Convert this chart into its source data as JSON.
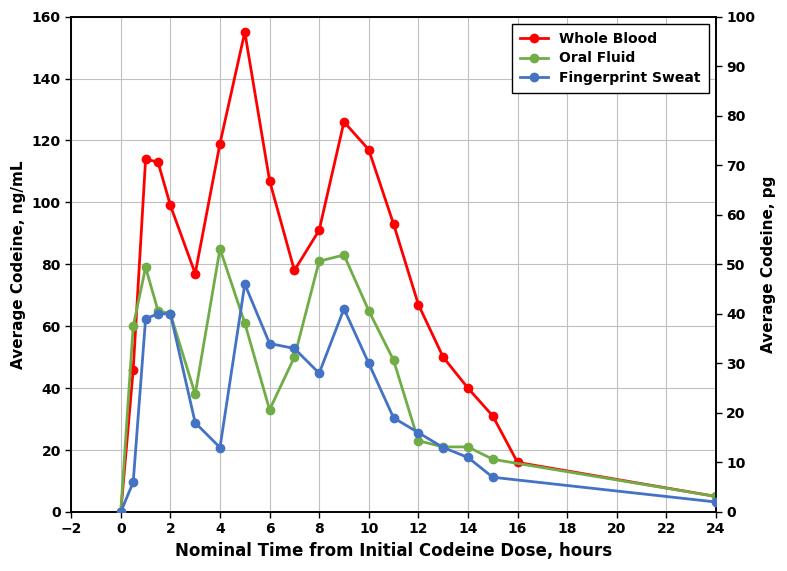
{
  "whole_blood_x": [
    0,
    0.5,
    1,
    1.5,
    2,
    3,
    4,
    5,
    6,
    7,
    8,
    9,
    10,
    11,
    12,
    13,
    14,
    15,
    16,
    24
  ],
  "whole_blood_y": [
    0,
    46,
    114,
    113,
    99,
    77,
    119,
    155,
    107,
    78,
    91,
    126,
    117,
    93,
    67,
    50,
    40,
    31,
    16,
    5
  ],
  "oral_fluid_x": [
    0,
    0.5,
    1,
    1.5,
    2,
    3,
    4,
    5,
    6,
    7,
    8,
    9,
    10,
    11,
    12,
    13,
    14,
    15,
    24
  ],
  "oral_fluid_y": [
    0,
    60,
    79,
    65,
    64,
    38,
    85,
    61,
    33,
    50,
    81,
    83,
    65,
    49,
    23,
    21,
    21,
    17,
    5
  ],
  "fp_sweat_x": [
    0,
    0.5,
    1,
    1.5,
    2,
    3,
    4,
    5,
    6,
    7,
    8,
    9,
    10,
    11,
    12,
    13,
    14,
    15,
    24
  ],
  "fp_sweat_y": [
    0,
    6,
    39,
    40,
    40,
    18,
    13,
    46,
    34,
    33,
    28,
    41,
    30,
    19,
    16,
    13,
    11,
    7,
    2
  ],
  "wb_color": "#FF0000",
  "of_color": "#70AD47",
  "fp_color": "#4472C4",
  "xlabel": "Nominal Time from Initial Codeine Dose, hours",
  "ylabel_left": "Average Codeine, ng/mL",
  "ylabel_right": "Average Codeine, pg",
  "ylim_left": [
    0,
    160
  ],
  "ylim_right": [
    0,
    100
  ],
  "xlim": [
    -2,
    24
  ],
  "xticks": [
    -2,
    0,
    2,
    4,
    6,
    8,
    10,
    12,
    14,
    16,
    18,
    20,
    22,
    24
  ],
  "yticks_left": [
    0,
    20,
    40,
    60,
    80,
    100,
    120,
    140,
    160
  ],
  "yticks_right": [
    0,
    10,
    20,
    30,
    40,
    50,
    60,
    70,
    80,
    90,
    100
  ],
  "legend_labels": [
    "Whole Blood",
    "Oral Fluid",
    "Fingerprint Sweat"
  ],
  "background_color": "#FFFFFF",
  "grid_color": "#C0C0C0"
}
